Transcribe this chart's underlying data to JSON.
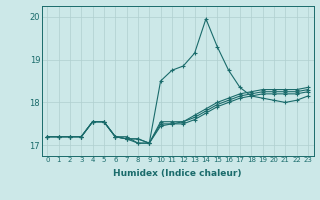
{
  "xlabel": "Humidex (Indice chaleur)",
  "ylabel": "",
  "xlim": [
    -0.5,
    23.5
  ],
  "ylim": [
    16.75,
    20.25
  ],
  "yticks": [
    17,
    18,
    19,
    20
  ],
  "xticks": [
    0,
    1,
    2,
    3,
    4,
    5,
    6,
    7,
    8,
    9,
    10,
    11,
    12,
    13,
    14,
    15,
    16,
    17,
    18,
    19,
    20,
    21,
    22,
    23
  ],
  "background_color": "#cce8e8",
  "line_color": "#1a6b6b",
  "grid_color": "#b0cfcf",
  "series": [
    [
      17.2,
      17.2,
      17.2,
      17.2,
      17.55,
      17.55,
      17.2,
      17.15,
      17.15,
      17.05,
      18.5,
      18.75,
      18.85,
      19.15,
      19.95,
      19.3,
      18.75,
      18.35,
      18.15,
      18.1,
      18.05,
      18.0,
      18.05,
      18.15
    ],
    [
      17.2,
      17.2,
      17.2,
      17.2,
      17.55,
      17.55,
      17.2,
      17.15,
      17.15,
      17.05,
      17.55,
      17.55,
      17.55,
      17.7,
      17.85,
      18.0,
      18.1,
      18.2,
      18.25,
      18.3,
      18.3,
      18.3,
      18.3,
      18.35
    ],
    [
      17.2,
      17.2,
      17.2,
      17.2,
      17.55,
      17.55,
      17.2,
      17.15,
      17.05,
      17.05,
      17.5,
      17.5,
      17.55,
      17.65,
      17.8,
      17.95,
      18.05,
      18.15,
      18.2,
      18.25,
      18.25,
      18.25,
      18.25,
      18.3
    ],
    [
      17.2,
      17.2,
      17.2,
      17.2,
      17.55,
      17.55,
      17.2,
      17.2,
      17.05,
      17.05,
      17.45,
      17.5,
      17.5,
      17.6,
      17.75,
      17.9,
      18.0,
      18.1,
      18.15,
      18.2,
      18.2,
      18.2,
      18.2,
      18.25
    ]
  ]
}
